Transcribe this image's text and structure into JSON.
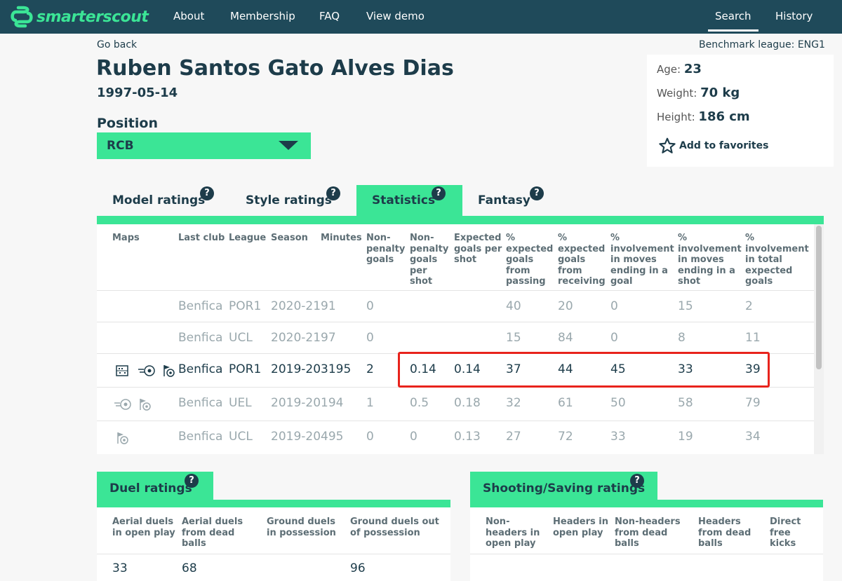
{
  "nav": {
    "brand": "smarterscout",
    "links": [
      "About",
      "Membership",
      "FAQ",
      "View demo"
    ],
    "right_links": [
      "Search",
      "History"
    ]
  },
  "go_back": "Go back",
  "benchmark": "Benchmark league: ENG1",
  "player": {
    "name": "Ruben Santos Gato Alves Dias",
    "dob": "1997-05-14"
  },
  "position": {
    "label": "Position",
    "value": "RCB"
  },
  "info": {
    "age_label": "Age:",
    "age": "23",
    "weight_label": "Weight:",
    "weight": "70 kg",
    "height_label": "Height:",
    "height": "186 cm",
    "favorites": "Add to favorites"
  },
  "tabs": [
    {
      "label": "Model ratings",
      "help": "?"
    },
    {
      "label": "Style ratings",
      "help": "?"
    },
    {
      "label": "Statistics",
      "help": "?"
    },
    {
      "label": "Fantasy",
      "help": "?"
    }
  ],
  "stats": {
    "headers": {
      "maps": "Maps",
      "club": "Last club",
      "league": "League",
      "season": "Season",
      "minutes": "Minutes",
      "npg": "Non-penalty goals",
      "npg_shot": "Non-penalty goals per shot",
      "xg_shot": "Expected goals per shot",
      "xg_pass": "% expected goals from passing",
      "xg_recv": "% expected goals from receiving",
      "inv_goal": "% involvement in moves ending in a goal",
      "inv_shot": "% involvement in moves ending in a shot",
      "inv_xg": "% involvement in total expected goals"
    },
    "rows": [
      {
        "club": "Benfica",
        "league": "POR1",
        "season": "2020-21",
        "minutes": "91",
        "npg": "0",
        "npg_shot": "",
        "xg_shot": "",
        "xg_pass": "40",
        "xg_recv": "20",
        "inv_goal": "0",
        "inv_shot": "15",
        "inv_xg": "2"
      },
      {
        "club": "Benfica",
        "league": "UCL",
        "season": "2020-21",
        "minutes": "97",
        "npg": "0",
        "npg_shot": "",
        "xg_shot": "",
        "xg_pass": "15",
        "xg_recv": "84",
        "inv_goal": "0",
        "inv_shot": "8",
        "inv_xg": "11"
      },
      {
        "club": "Benfica",
        "league": "POR1",
        "season": "2019-20",
        "minutes": "3195",
        "npg": "2",
        "npg_shot": "0.14",
        "xg_shot": "0.14",
        "xg_pass": "37",
        "xg_recv": "44",
        "inv_goal": "45",
        "inv_shot": "33",
        "inv_xg": "39"
      },
      {
        "club": "Benfica",
        "league": "UEL",
        "season": "2019-20",
        "minutes": "194",
        "npg": "1",
        "npg_shot": "0.5",
        "xg_shot": "0.18",
        "xg_pass": "32",
        "xg_recv": "61",
        "inv_goal": "50",
        "inv_shot": "58",
        "inv_xg": "79"
      },
      {
        "club": "Benfica",
        "league": "UCL",
        "season": "2019-20",
        "minutes": "495",
        "npg": "0",
        "npg_shot": "0",
        "xg_shot": "0.13",
        "xg_pass": "27",
        "xg_recv": "72",
        "inv_goal": "33",
        "inv_shot": "19",
        "inv_xg": "34"
      }
    ]
  },
  "duel": {
    "title": "Duel ratings",
    "help": "?",
    "headers": [
      "Aerial duels in open play",
      "Aerial duels from dead balls",
      "Ground duels in possession",
      "Ground duels out of possession"
    ],
    "values": [
      "33",
      "68",
      "",
      "96"
    ]
  },
  "shooting": {
    "title": "Shooting/Saving ratings",
    "help": "?",
    "headers": [
      "Non-headers in open play",
      "Headers in open play",
      "Non-headers from dead balls",
      "Headers from dead balls",
      "Direct free kicks"
    ]
  },
  "colors": {
    "brand_green": "#3be596",
    "nav_bg": "#1f4a5a",
    "text": "#1d3c4a",
    "highlight": "#e8231c"
  }
}
